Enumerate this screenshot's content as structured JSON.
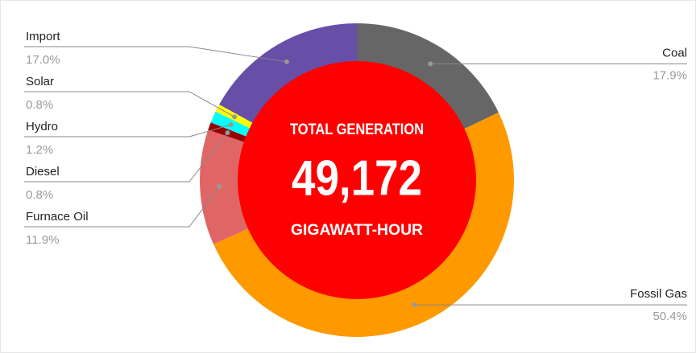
{
  "chart_data": {
    "type": "donut",
    "categories": [
      "Coal",
      "Fossil Gas",
      "Furnace Oil",
      "Diesel",
      "Hydro",
      "Solar",
      "Import"
    ],
    "values": [
      17.9,
      50.4,
      11.9,
      0.8,
      1.2,
      0.8,
      17.0
    ],
    "value_labels": [
      "17.9%",
      "50.4%",
      "11.9%",
      "0.8%",
      "1.2%",
      "0.8%",
      "17.0%"
    ],
    "colors": [
      "#666666",
      "#ff9900",
      "#e06666",
      "#990000",
      "#00ffff",
      "#ffff00",
      "#674ea7"
    ],
    "center_label": {
      "title": "TOTAL GENERATION",
      "value": "49,172",
      "unit": "GIGAWATT-HOUR",
      "color": "#ff0000"
    }
  }
}
